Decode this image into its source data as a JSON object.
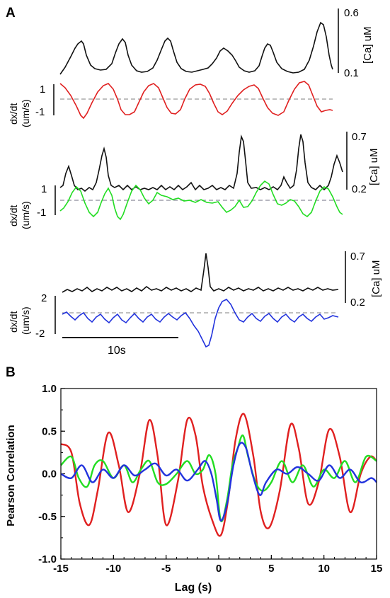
{
  "panel_a": {
    "label": "A",
    "rows": [
      {
        "ca_top": "0.6",
        "ca_bottom": "0.1",
        "ca_unit": "[Ca] uM",
        "vel_top": "1",
        "vel_bottom": "-1",
        "vel_label_1": "dx/dt",
        "vel_label_2": "(um/s)",
        "vel_color": "#e02020"
      },
      {
        "ca_top": "0.7",
        "ca_bottom": "0.2",
        "ca_unit": "[Ca] uM",
        "vel_top": "1",
        "vel_bottom": "-1",
        "vel_label_1": "dx/dt",
        "vel_label_2": "(um/s)",
        "vel_color": "#22dd22"
      },
      {
        "ca_top": "0.7",
        "ca_bottom": "0.2",
        "ca_unit": "[Ca] uM",
        "vel_top": "2",
        "vel_bottom": "-2",
        "vel_label_1": "dx/dt",
        "vel_label_2": "(um/s)",
        "vel_color": "#2233dd"
      }
    ],
    "scale_bar": "10s"
  },
  "panel_b": {
    "label": "B"
  },
  "chart_data": {
    "type": "line",
    "xlabel": "Lag (s)",
    "ylabel": "Pearson Correlation",
    "xlim": [
      -15,
      15
    ],
    "ylim": [
      -1.0,
      1.0
    ],
    "xticks": [
      "-15",
      "-10",
      "-5",
      "0",
      "5",
      "10",
      "15"
    ],
    "yticks": [
      "1.0",
      "0.5",
      "0.0",
      "-0.5",
      "-1.0"
    ],
    "grid": false,
    "series": [
      {
        "color": "#e02020",
        "x": [
          -15,
          -14,
          -13.2,
          -12.3,
          -11.5,
          -10.5,
          -9.5,
          -8.6,
          -7.5,
          -6.6,
          -5.8,
          -5.0,
          -3.9,
          -3.0,
          -2.2,
          -1.5,
          -0.6,
          0.2,
          0.9,
          1.6,
          2.4,
          3.3,
          4.0,
          4.8,
          5.8,
          6.8,
          7.6,
          8.5,
          9.5,
          10.5,
          11.5,
          12.5,
          13.5,
          14.4,
          15
        ],
        "values": [
          0.35,
          0.25,
          -0.35,
          -0.6,
          -0.2,
          0.48,
          0.1,
          -0.45,
          0.0,
          0.63,
          0.2,
          -0.6,
          -0.1,
          0.63,
          0.45,
          -0.15,
          -0.55,
          -0.72,
          -0.3,
          0.4,
          0.7,
          0.2,
          -0.45,
          -0.63,
          -0.2,
          0.57,
          0.3,
          -0.35,
          -0.1,
          0.52,
          0.2,
          -0.45,
          0.0,
          0.2,
          0.15
        ]
      },
      {
        "color": "#22dd22",
        "x": [
          -15,
          -14.0,
          -13.3,
          -12.5,
          -11.8,
          -11.0,
          -10.0,
          -9.0,
          -8.2,
          -7.4,
          -6.6,
          -5.8,
          -5.0,
          -4.0,
          -3.0,
          -2.2,
          -1.5,
          -0.9,
          -0.3,
          0.2,
          0.8,
          1.3,
          1.8,
          2.3,
          2.8,
          3.5,
          4.2,
          5.0,
          6.0,
          7.0,
          8.0,
          9.0,
          10.0,
          11.0,
          12.0,
          13.0,
          14.0,
          15
        ],
        "values": [
          0.1,
          0.2,
          -0.05,
          -0.15,
          0.1,
          0.15,
          -0.05,
          0.1,
          -0.1,
          0.05,
          0.15,
          -0.1,
          -0.12,
          0.0,
          0.15,
          0.0,
          0.05,
          0.22,
          0.0,
          -0.55,
          -0.3,
          0.1,
          0.3,
          0.45,
          0.2,
          -0.1,
          -0.2,
          -0.1,
          0.15,
          -0.1,
          0.1,
          -0.15,
          0.05,
          -0.05,
          0.15,
          -0.1,
          0.2,
          0.15
        ]
      },
      {
        "color": "#2233dd",
        "x": [
          -15,
          -14.0,
          -13.0,
          -12.0,
          -11.0,
          -10.0,
          -9.0,
          -8.0,
          -7.0,
          -6.0,
          -5.0,
          -4.0,
          -3.0,
          -2.0,
          -1.3,
          -0.7,
          -0.2,
          0.2,
          0.8,
          1.4,
          2.0,
          2.6,
          3.2,
          3.9,
          4.5,
          5.5,
          6.5,
          7.5,
          8.5,
          9.5,
          10.5,
          11.5,
          12.5,
          13.5,
          14.5,
          15
        ],
        "values": [
          0.0,
          -0.05,
          0.1,
          -0.1,
          0.05,
          -0.05,
          0.1,
          -0.02,
          0.05,
          0.12,
          -0.02,
          0.05,
          -0.08,
          0.05,
          0.15,
          0.0,
          -0.3,
          -0.55,
          -0.35,
          0.1,
          0.35,
          0.3,
          0.0,
          -0.25,
          -0.1,
          0.05,
          0.0,
          0.08,
          0.0,
          -0.08,
          0.1,
          -0.05,
          0.05,
          -0.1,
          -0.05,
          -0.1
        ]
      }
    ]
  }
}
